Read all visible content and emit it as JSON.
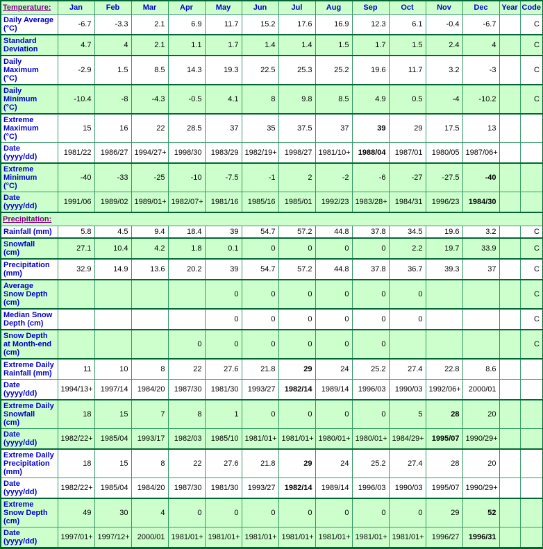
{
  "table": {
    "temperature_label": "Temperature:",
    "precipitation_label": "Precipitation:",
    "months": [
      "Jan",
      "Feb",
      "Mar",
      "Apr",
      "May",
      "Jun",
      "Jul",
      "Aug",
      "Sep",
      "Oct",
      "Nov",
      "Dec"
    ],
    "year_label": "Year",
    "code_label": "Code",
    "rows": [
      {
        "label": "Daily Average\n(°C)",
        "values": [
          "-6.7",
          "-3.3",
          "2.1",
          "6.9",
          "11.7",
          "15.2",
          "17.6",
          "16.9",
          "12.3",
          "6.1",
          "-0.4",
          "-6.7"
        ],
        "year": "",
        "code": "C",
        "bg": "white",
        "thick": false,
        "bold": []
      },
      {
        "label": "Standard\nDeviation",
        "values": [
          "4.7",
          "4",
          "2.1",
          "1.1",
          "1.7",
          "1.4",
          "1.4",
          "1.5",
          "1.7",
          "1.5",
          "2.4",
          "4"
        ],
        "year": "",
        "code": "C",
        "bg": "green",
        "thick": true,
        "bold": []
      },
      {
        "label": "Daily\nMaximum\n(°C)",
        "values": [
          "-2.9",
          "1.5",
          "8.5",
          "14.3",
          "19.3",
          "22.5",
          "25.3",
          "25.2",
          "19.6",
          "11.7",
          "3.2",
          "-3"
        ],
        "year": "",
        "code": "C",
        "bg": "white",
        "thick": true,
        "bold": []
      },
      {
        "label": "Daily\nMinimum\n(°C)",
        "values": [
          "-10.4",
          "-8",
          "-4.3",
          "-0.5",
          "4.1",
          "8",
          "9.8",
          "8.5",
          "4.9",
          "0.5",
          "-4",
          "-10.2"
        ],
        "year": "",
        "code": "C",
        "bg": "green",
        "thick": true,
        "bold": []
      },
      {
        "label": "Extreme\nMaximum\n(°C)",
        "values": [
          "15",
          "16",
          "22",
          "28.5",
          "37",
          "35",
          "37.5",
          "37",
          "39",
          "29",
          "17.5",
          "13"
        ],
        "year": "",
        "code": "",
        "bg": "white",
        "thick": true,
        "bold": [
          8
        ]
      },
      {
        "label": "Date\n(yyyy/dd)",
        "values": [
          "1981/22",
          "1986/27",
          "1994/27+",
          "1998/30",
          "1983/29",
          "1982/19+",
          "1998/27",
          "1981/10+",
          "1988/04",
          "1987/01",
          "1980/05",
          "1987/06+"
        ],
        "year": "",
        "code": "",
        "bg": "white",
        "thick": false,
        "bold": [
          8
        ]
      },
      {
        "label": "Extreme\nMinimum\n(°C)",
        "values": [
          "-40",
          "-33",
          "-25",
          "-10",
          "-7.5",
          "-1",
          "2",
          "-2",
          "-6",
          "-27",
          "-27.5",
          "-40"
        ],
        "year": "",
        "code": "",
        "bg": "green",
        "thick": true,
        "bold": [
          11
        ]
      },
      {
        "label": "Date\n(yyyy/dd)",
        "values": [
          "1991/06",
          "1989/02",
          "1989/01+",
          "1982/07+",
          "1981/16",
          "1985/16",
          "1985/01",
          "1992/23",
          "1983/28+",
          "1984/31",
          "1996/23",
          "1984/30"
        ],
        "year": "",
        "code": "",
        "bg": "green",
        "thick": false,
        "bold": [
          11
        ]
      },
      {
        "section": true,
        "bg": "green",
        "thick": true
      },
      {
        "label": "Rainfall (mm)",
        "values": [
          "5.8",
          "4.5",
          "9.4",
          "18.4",
          "39",
          "54.7",
          "57.2",
          "44.8",
          "37.8",
          "34.5",
          "19.6",
          "3.2"
        ],
        "year": "",
        "code": "C",
        "bg": "white",
        "thick": false,
        "bold": []
      },
      {
        "label": "Snowfall\n(cm)",
        "values": [
          "27.1",
          "10.4",
          "4.2",
          "1.8",
          "0.1",
          "0",
          "0",
          "0",
          "0",
          "2.2",
          "19.7",
          "33.9"
        ],
        "year": "",
        "code": "C",
        "bg": "green",
        "thick": true,
        "bold": []
      },
      {
        "label": "Precipitation\n(mm)",
        "values": [
          "32.9",
          "14.9",
          "13.6",
          "20.2",
          "39",
          "54.7",
          "57.2",
          "44.8",
          "37.8",
          "36.7",
          "39.3",
          "37"
        ],
        "year": "",
        "code": "C",
        "bg": "white",
        "thick": true,
        "bold": []
      },
      {
        "label": "Average\nSnow Depth\n(cm)",
        "values": [
          "",
          "",
          "",
          "",
          "0",
          "0",
          "0",
          "0",
          "0",
          "0",
          "",
          ""
        ],
        "year": "",
        "code": "C",
        "bg": "green",
        "thick": true,
        "bold": []
      },
      {
        "label": "Median Snow\nDepth (cm)",
        "values": [
          "",
          "",
          "",
          "",
          "0",
          "0",
          "0",
          "0",
          "0",
          "0",
          "",
          ""
        ],
        "year": "",
        "code": "C",
        "bg": "white",
        "thick": true,
        "bold": []
      },
      {
        "label": "Snow Depth\nat Month-end\n(cm)",
        "values": [
          "",
          "",
          "",
          "0",
          "0",
          "0",
          "0",
          "0",
          "0",
          "",
          "",
          ""
        ],
        "year": "",
        "code": "C",
        "bg": "green",
        "thick": true,
        "bold": []
      },
      {
        "label": "Extreme Daily\nRainfall (mm)",
        "values": [
          "11",
          "10",
          "8",
          "22",
          "27.6",
          "21.8",
          "29",
          "24",
          "25.2",
          "27.4",
          "22.8",
          "8.6"
        ],
        "year": "",
        "code": "",
        "bg": "white",
        "thick": true,
        "bold": [
          6
        ]
      },
      {
        "label": "Date\n(yyyy/dd)",
        "values": [
          "1994/13+",
          "1997/14",
          "1984/20",
          "1987/30",
          "1981/30",
          "1993/27",
          "1982/14",
          "1989/14",
          "1996/03",
          "1990/03",
          "1992/06+",
          "2000/01"
        ],
        "year": "",
        "code": "",
        "bg": "white",
        "thick": false,
        "bold": [
          6
        ]
      },
      {
        "label": "Extreme Daily\nSnowfall\n(cm)",
        "values": [
          "18",
          "15",
          "7",
          "8",
          "1",
          "0",
          "0",
          "0",
          "0",
          "5",
          "28",
          "20"
        ],
        "year": "",
        "code": "",
        "bg": "green",
        "thick": true,
        "bold": [
          10
        ]
      },
      {
        "label": "Date\n(yyyy/dd)",
        "values": [
          "1982/22+",
          "1985/04",
          "1993/17",
          "1982/03",
          "1985/10",
          "1981/01+",
          "1981/01+",
          "1980/01+",
          "1980/01+",
          "1984/29+",
          "1995/07",
          "1990/29+"
        ],
        "year": "",
        "code": "",
        "bg": "green",
        "thick": false,
        "bold": [
          10
        ]
      },
      {
        "label": "Extreme Daily\nPrecipitation\n(mm)",
        "values": [
          "18",
          "15",
          "8",
          "22",
          "27.6",
          "21.8",
          "29",
          "24",
          "25.2",
          "27.4",
          "28",
          "20"
        ],
        "year": "",
        "code": "",
        "bg": "white",
        "thick": true,
        "bold": [
          6
        ]
      },
      {
        "label": "Date\n(yyyy/dd)",
        "values": [
          "1982/22+",
          "1985/04",
          "1984/20",
          "1987/30",
          "1981/30",
          "1993/27",
          "1982/14",
          "1989/14",
          "1996/03",
          "1990/03",
          "1995/07",
          "1990/29+"
        ],
        "year": "",
        "code": "",
        "bg": "white",
        "thick": false,
        "bold": [
          6
        ]
      },
      {
        "label": "Extreme\nSnow Depth\n(cm)",
        "values": [
          "49",
          "30",
          "4",
          "0",
          "0",
          "0",
          "0",
          "0",
          "0",
          "0",
          "29",
          "52"
        ],
        "year": "",
        "code": "",
        "bg": "green",
        "thick": true,
        "bold": [
          11
        ]
      },
      {
        "label": "Date\n(yyyy/dd)",
        "values": [
          "1997/01+",
          "1997/12+",
          "2000/01",
          "1981/01+",
          "1981/01+",
          "1981/01+",
          "1981/01+",
          "1981/01+",
          "1981/01+",
          "1981/01+",
          "1996/27",
          "1996/31"
        ],
        "year": "",
        "code": "",
        "bg": "green",
        "thick": false,
        "bold": [
          11
        ]
      }
    ],
    "colors": {
      "row_green": "#CCFFCC",
      "row_white": "#FFFFFF",
      "grid_line": "#339966",
      "section_line": "#006633",
      "header_blue": "#0000CC",
      "section_link_purple": "#800080",
      "value_text": "#000000"
    }
  }
}
